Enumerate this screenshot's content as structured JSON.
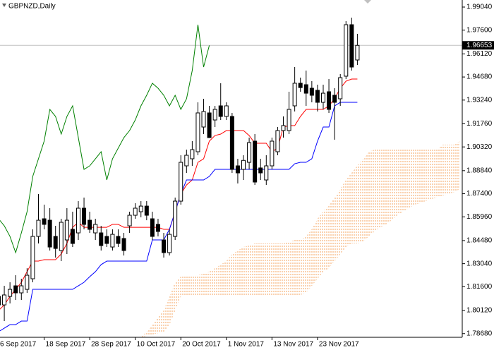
{
  "chart_data": {
    "type": "candlestick",
    "title": "GBPNZD,Daily",
    "categories": [
      "6 Sep 2017",
      null,
      null,
      null,
      null,
      null,
      null,
      null,
      "18 Sep 2017",
      null,
      null,
      null,
      null,
      null,
      null,
      null,
      "28 Sep 2017",
      null,
      null,
      null,
      null,
      null,
      null,
      null,
      "10 Oct 2017",
      null,
      null,
      null,
      null,
      null,
      null,
      null,
      "20 Oct 2017",
      null,
      null,
      null,
      null,
      null,
      null,
      null,
      "1 Nov 2017",
      null,
      null,
      null,
      null,
      null,
      null,
      null,
      "13 Nov 2017",
      null,
      null,
      null,
      null,
      null,
      null,
      null,
      "23 Nov 2017",
      null,
      null,
      null,
      null,
      null,
      null,
      null,
      null,
      null,
      null,
      null,
      null,
      null,
      null,
      null,
      null,
      null,
      null,
      null,
      null,
      null,
      null,
      null,
      null,
      null
    ],
    "open": [
      1.81,
      1.8047,
      1.81,
      1.8166,
      1.8122,
      1.8144,
      1.821,
      1.8474,
      1.8584,
      1.8575,
      1.8474,
      1.8386,
      1.8452,
      1.8518,
      1.8496,
      1.865,
      1.8575,
      1.8496,
      1.8496,
      1.8474,
      1.8408,
      1.8474,
      1.8461,
      1.854,
      1.8606,
      1.8628,
      1.8663,
      1.8584,
      1.8549,
      1.8452,
      1.8373,
      1.8474,
      1.8694,
      1.8914,
      1.8958,
      1.9002,
      1.9156,
      1.9244,
      1.92,
      1.9288,
      1.9222,
      1.9222,
      1.8914,
      1.8892,
      1.8936,
      1.9068,
      1.8901,
      1.8826,
      1.8914,
      1.9002,
      1.9134,
      1.9134,
      1.9288,
      1.9429,
      1.942,
      1.9398,
      1.9385,
      1.931,
      1.9376,
      1.9354,
      1.9332,
      1.9473,
      1.9794,
      1.9574,
      null,
      null,
      null,
      null,
      null,
      null,
      null,
      null,
      null,
      null,
      null,
      null,
      null,
      null,
      null,
      null,
      null,
      null
    ],
    "high": [
      1.8144,
      1.8166,
      1.8188,
      1.8232,
      1.821,
      1.8276,
      1.8518,
      1.8738,
      1.8672,
      1.865,
      1.854,
      1.8584,
      1.865,
      1.8628,
      1.8694,
      1.8716,
      1.8628,
      1.8584,
      1.854,
      1.8518,
      1.8518,
      1.8518,
      1.8496,
      1.8628,
      1.8681,
      1.8694,
      1.8694,
      1.8628,
      1.8584,
      1.8496,
      1.8518,
      1.8716,
      1.898,
      1.9015,
      1.9068,
      1.931,
      1.9332,
      1.9288,
      1.9288,
      1.9429,
      1.931,
      1.9244,
      1.8958,
      1.898,
      1.909,
      1.9112,
      1.8958,
      1.898,
      1.909,
      1.9156,
      1.9222,
      1.9376,
      1.953,
      1.9464,
      1.9508,
      1.9442,
      1.942,
      1.942,
      1.9455,
      1.9398,
      1.9486,
      1.9816,
      1.9838,
      1.9737,
      null,
      null,
      null,
      null,
      null,
      null,
      null,
      null,
      null,
      null,
      null,
      null,
      null,
      null,
      null,
      null,
      null,
      null
    ],
    "low": [
      1.799,
      1.7946,
      1.8056,
      1.8078,
      1.8078,
      1.8122,
      1.8188,
      1.843,
      1.8518,
      1.8386,
      1.8342,
      1.832,
      1.8364,
      1.8408,
      1.8452,
      1.8518,
      1.8496,
      1.8452,
      1.8386,
      1.8408,
      1.8386,
      1.8408,
      1.8355,
      1.8496,
      1.8584,
      1.8593,
      1.8575,
      1.8452,
      1.8474,
      1.8342,
      1.8355,
      1.8452,
      1.8672,
      1.887,
      1.8914,
      1.898,
      1.9112,
      1.909,
      1.9156,
      1.92,
      1.92,
      1.887,
      1.8804,
      1.8826,
      1.8892,
      1.8795,
      1.8826,
      1.8795,
      1.8892,
      1.898,
      1.909,
      1.9112,
      1.9253,
      1.9376,
      1.9288,
      1.931,
      1.9253,
      1.9266,
      1.9244,
      1.9077,
      1.9288,
      1.9455,
      1.9508,
      1.9543,
      null,
      null,
      null,
      null,
      null,
      null,
      null,
      null,
      null,
      null,
      null,
      null,
      null,
      null,
      null,
      null,
      null,
      null
    ],
    "close": [
      1.8047,
      1.8109,
      1.8144,
      1.8122,
      1.8166,
      1.8232,
      1.8474,
      1.8575,
      1.8549,
      1.8408,
      1.8399,
      1.8562,
      1.8575,
      1.843,
      1.865,
      1.8549,
      1.8518,
      1.8549,
      1.8417,
      1.843,
      1.8487,
      1.843,
      1.8386,
      1.8606,
      1.865,
      1.8663,
      1.8606,
      1.8474,
      1.8505,
      1.8373,
      1.8487,
      1.8694,
      1.8936,
      1.898,
      1.9015,
      1.9244,
      1.9253,
      1.909,
      1.9266,
      1.9222,
      1.9288,
      1.8892,
      1.887,
      1.8948,
      1.9059,
      1.8813,
      1.887,
      1.8914,
      1.9068,
      1.9134,
      1.9165,
      1.9266,
      1.9429,
      1.9402,
      1.9367,
      1.9354,
      1.931,
      1.9367,
      1.9266,
      1.931,
      1.9464,
      1.9794,
      1.953,
      1.96653,
      null,
      null,
      null,
      null,
      null,
      null,
      null,
      null,
      null,
      null,
      null,
      null,
      null,
      null,
      null,
      null,
      null,
      null
    ],
    "up_color": "#ffffff",
    "down_color": "#000000",
    "candle_edge_color": "#000000",
    "price_line_color": "#c0c0c0",
    "series": [
      {
        "color": "#ff0000",
        "values": [
          1.8012,
          1.8047,
          1.81,
          1.8144,
          1.8188,
          1.8254,
          1.832,
          1.832,
          1.8329,
          1.8329,
          1.8329,
          1.8364,
          1.843,
          1.8531,
          1.8562,
          1.8531,
          1.8531,
          1.8531,
          1.8531,
          1.8531,
          1.8549,
          1.8549,
          1.8531,
          1.8531,
          1.8531,
          1.8531,
          1.8531,
          1.8531,
          1.8531,
          1.8518,
          1.8518,
          1.8628,
          1.8738,
          1.8795,
          1.8826,
          1.8936,
          1.8958,
          1.9068,
          1.9103,
          1.9112,
          1.9134,
          1.9134,
          1.9134,
          1.9134,
          1.9103,
          1.9055,
          1.9055,
          1.9055,
          1.9002,
          1.9024,
          1.9156,
          1.9165,
          1.9165,
          1.9222,
          1.9266,
          1.9266,
          1.9266,
          1.9266,
          1.9288,
          1.9332,
          1.9398,
          1.9442,
          1.9455,
          1.9455,
          null,
          null,
          null,
          null,
          null,
          null,
          null,
          null,
          null,
          null,
          null,
          null,
          null,
          null,
          null,
          null,
          null,
          null
        ]
      },
      {
        "color": "#0000ff",
        "values": [
          1.788,
          1.7902,
          1.7924,
          1.7924,
          1.7946,
          1.7946,
          1.8144,
          1.8144,
          1.8144,
          1.8144,
          1.8144,
          1.8144,
          1.8144,
          1.8144,
          1.8166,
          1.8188,
          1.8223,
          1.8254,
          1.8298,
          1.832,
          1.832,
          1.832,
          1.832,
          1.832,
          1.832,
          1.832,
          1.832,
          1.8452,
          1.8452,
          1.8452,
          1.8518,
          1.8628,
          1.8738,
          1.8826,
          1.8826,
          1.8826,
          1.8826,
          1.8848,
          1.8892,
          1.8892,
          1.8892,
          1.8892,
          1.8892,
          1.8892,
          1.8892,
          1.8892,
          1.8892,
          1.8892,
          1.8892,
          1.8892,
          1.8892,
          1.8892,
          1.8927,
          1.8936,
          1.8936,
          1.8958,
          1.9068,
          1.9156,
          1.9156,
          1.9288,
          1.931,
          1.931,
          1.931,
          1.931,
          null,
          null,
          null,
          null,
          null,
          null,
          null,
          null,
          null,
          null,
          null,
          null,
          null,
          null,
          null,
          null,
          null,
          null
        ]
      },
      {
        "color": "#008000",
        "values": [
          1.8584,
          1.854,
          1.8474,
          1.8373,
          1.8496,
          1.8628,
          1.8848,
          1.8958,
          1.9068,
          1.9266,
          1.9222,
          1.9112,
          1.9222,
          1.9288,
          1.909,
          1.8892,
          1.8914,
          1.8958,
          1.9002,
          1.8826,
          1.8958,
          1.9024,
          1.909,
          1.9134,
          1.92,
          1.9288,
          1.9354,
          1.9429,
          1.9398,
          1.9354,
          1.9288,
          1.9354,
          1.9266,
          1.9332,
          1.9508,
          1.9794,
          1.953,
          1.9665,
          null,
          null,
          null,
          null,
          null,
          null,
          null,
          null,
          null,
          null,
          null,
          null,
          null,
          null,
          null,
          null,
          null,
          null,
          null,
          null,
          null,
          null,
          null,
          null,
          null,
          null,
          null,
          null,
          null,
          null,
          null,
          null,
          null,
          null,
          null,
          null,
          null,
          null,
          null,
          null,
          null,
          null,
          null,
          null
        ]
      }
    ],
    "cloud": {
      "color": "#f4a460",
      "span_a": [
        null,
        null,
        null,
        null,
        null,
        null,
        null,
        null,
        null,
        null,
        null,
        null,
        null,
        null,
        null,
        null,
        null,
        null,
        null,
        null,
        null,
        null,
        null,
        null,
        null,
        1.7845,
        1.7854,
        1.7862,
        1.7871,
        1.788,
        1.7924,
        1.8012,
        1.81,
        1.81,
        1.81,
        1.81,
        1.81,
        1.81,
        1.81,
        1.81,
        1.81,
        1.81,
        1.81,
        1.81,
        1.81,
        1.81,
        1.81,
        1.81,
        1.81,
        1.81,
        1.81,
        1.81,
        1.81,
        1.8109,
        1.8122,
        1.8166,
        1.821,
        1.8254,
        1.8276,
        1.832,
        1.8364,
        1.8408,
        1.843,
        1.843,
        1.8443,
        1.8474,
        1.8505,
        1.8531,
        1.8549,
        1.8575,
        1.8606,
        1.8628,
        1.865,
        1.8672,
        1.8681,
        1.8694,
        1.8707,
        1.8716,
        1.8729,
        1.8738,
        1.8751,
        1.8769
      ],
      "span_b": [
        null,
        null,
        null,
        null,
        null,
        null,
        null,
        null,
        null,
        null,
        null,
        null,
        null,
        null,
        null,
        null,
        null,
        null,
        null,
        null,
        null,
        null,
        null,
        null,
        null,
        1.7845,
        1.788,
        1.7924,
        1.7968,
        1.8012,
        1.81,
        1.8188,
        1.8223,
        1.8232,
        1.8232,
        1.8232,
        1.8241,
        1.8254,
        1.8276,
        1.8298,
        1.832,
        1.8364,
        1.8386,
        1.8408,
        1.8417,
        1.843,
        1.843,
        1.843,
        1.843,
        1.843,
        1.843,
        1.8439,
        1.8452,
        1.8452,
        1.8474,
        1.8518,
        1.8584,
        1.8628,
        1.8672,
        1.8716,
        1.8769,
        1.8826,
        1.887,
        1.8914,
        1.8958,
        1.9002,
        1.9015,
        1.9015,
        1.9015,
        1.9015,
        1.9015,
        1.9015,
        1.9015,
        1.9015,
        1.9015,
        1.9015,
        1.9015,
        1.9015,
        1.9046,
        1.9046,
        1.9046,
        1.9068
      ]
    },
    "ylim": [
      1.7845,
      1.9948
    ],
    "yticks": [
      {
        "value": 1.9904,
        "label": "1.99040"
      },
      {
        "value": 1.976,
        "label": "1.97600"
      },
      {
        "value": 1.9612,
        "label": "1.96120"
      },
      {
        "value": 1.9468,
        "label": "1.94680"
      },
      {
        "value": 1.9324,
        "label": "1.93240"
      },
      {
        "value": 1.9176,
        "label": "1.91760"
      },
      {
        "value": 1.9032,
        "label": "1.90320"
      },
      {
        "value": 1.8884,
        "label": "1.88840"
      },
      {
        "value": 1.874,
        "label": "1.87400"
      },
      {
        "value": 1.8596,
        "label": "1.85960"
      },
      {
        "value": 1.8448,
        "label": "1.84480"
      },
      {
        "value": 1.8304,
        "label": "1.83040"
      },
      {
        "value": 1.816,
        "label": "1.81600"
      },
      {
        "value": 1.8012,
        "label": "1.80120"
      },
      {
        "value": 1.7868,
        "label": "1.78680"
      }
    ]
  }
}
